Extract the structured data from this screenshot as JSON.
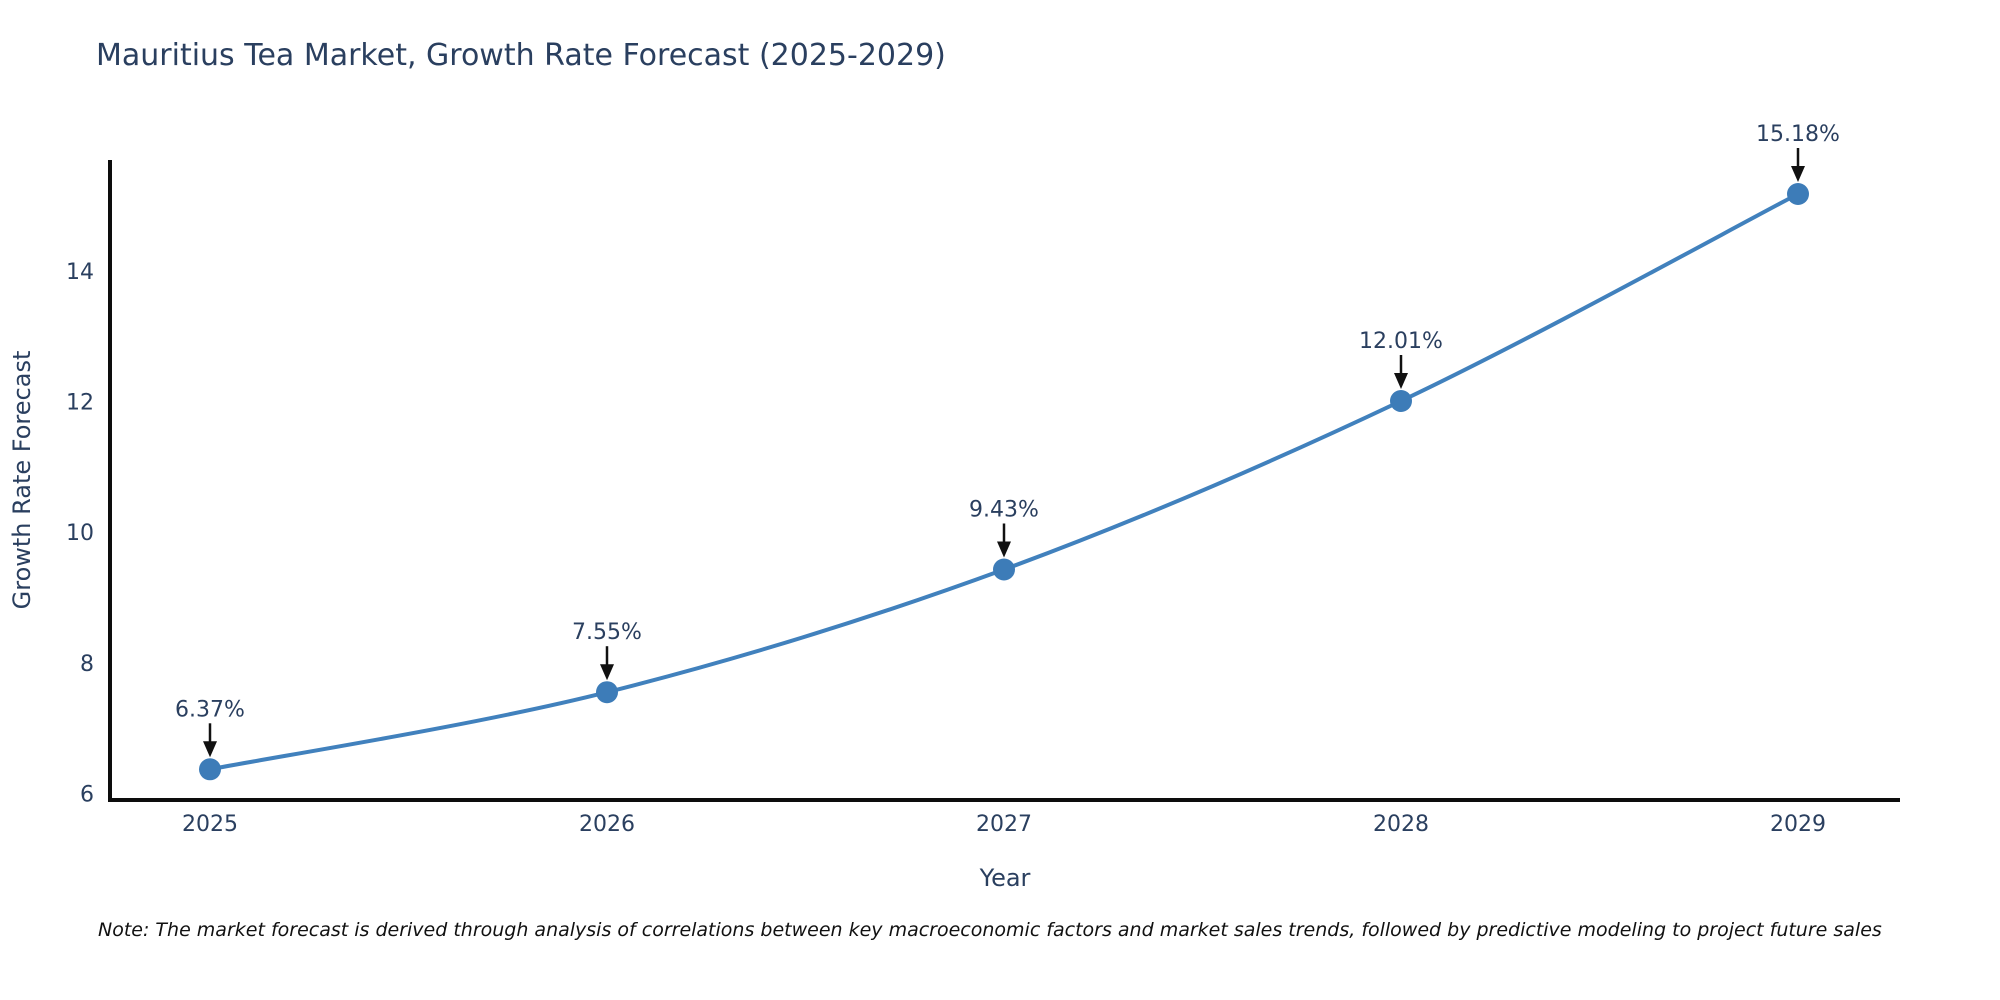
{
  "figure": {
    "note": "Note: The market forecast is derived through analysis of correlations between key macroeconomic factors and market sales trends, followed by predictive modeling to project future sales"
  },
  "chart_data": {
    "type": "line",
    "title": "Mauritius Tea Market, Growth Rate Forecast (2025-2029)",
    "xlabel": "Year",
    "ylabel": "Growth Rate Forecast",
    "categories": [
      "2025",
      "2026",
      "2027",
      "2028",
      "2029"
    ],
    "series": [
      {
        "name": "Growth Rate Forecast",
        "values": [
          6.37,
          7.55,
          9.43,
          12.01,
          15.18
        ],
        "point_labels": [
          "6.37%",
          "7.55%",
          "9.43%",
          "12.01%",
          "15.18%"
        ]
      }
    ],
    "yticks": [
      "6",
      "8",
      "10",
      "12",
      "14"
    ],
    "ylim": [
      5.9,
      15.7
    ],
    "grid": false,
    "legend_position": "none",
    "line_shape": "spline",
    "colors": {
      "line": "#4181bd",
      "marker": "#3d7cb8",
      "axis": "#0d0d0d",
      "text": "#2a3f5f",
      "annotation_arrow": "#111111",
      "background": "#ffffff"
    }
  }
}
